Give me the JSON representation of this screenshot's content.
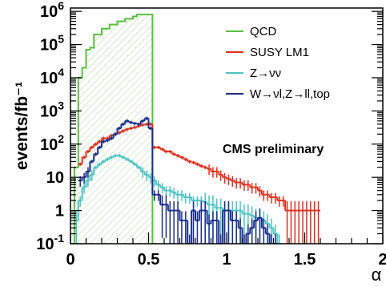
{
  "chart_data": {
    "type": "line",
    "xlabel": "α",
    "ylabel": "events/fb⁻¹",
    "xlim": [
      0,
      2
    ],
    "ylim_log10": [
      -1,
      6.1
    ],
    "y_scale": "log",
    "x_tick_labels": [
      {
        "v": 0,
        "t": "0"
      },
      {
        "v": 0.5,
        "t": "0.5"
      },
      {
        "v": 1,
        "t": "1"
      },
      {
        "v": 1.5,
        "t": "1.5"
      },
      {
        "v": 2,
        "t": "2"
      }
    ],
    "y_tick_labels": [
      {
        "e": -1,
        "b": "10",
        "s": "-1"
      },
      {
        "e": 0,
        "b": "1",
        "s": ""
      },
      {
        "e": 1,
        "b": "10",
        "s": ""
      },
      {
        "e": 2,
        "b": "10",
        "s": "2"
      },
      {
        "e": 3,
        "b": "10",
        "s": "3"
      },
      {
        "e": 4,
        "b": "10",
        "s": "4"
      },
      {
        "e": 5,
        "b": "10",
        "s": "5"
      },
      {
        "e": 6,
        "b": "10",
        "s": "6"
      }
    ],
    "annotation": "CMS preliminary",
    "legend_position": "top-right",
    "series": [
      {
        "name": "QCD",
        "color": "#59c040",
        "style": "filled-hatched",
        "x": [
          0.0,
          0.025,
          0.05,
          0.075,
          0.1,
          0.125,
          0.15,
          0.175,
          0.2,
          0.225,
          0.25,
          0.275,
          0.3,
          0.325,
          0.35,
          0.375,
          0.4,
          0.425,
          0.45,
          0.475,
          0.5,
          0.525
        ],
        "y": [
          0.1,
          20,
          10000,
          20000,
          70000,
          80000,
          200000,
          200000,
          300000,
          300000,
          400000,
          400000,
          500000,
          500000,
          600000,
          600000,
          700000,
          800000,
          800000,
          800000,
          800000,
          0.1
        ]
      },
      {
        "name": "SUSY LM1",
        "color": "#e0301e",
        "style": "errorbar",
        "x": [
          0.05,
          0.075,
          0.1,
          0.125,
          0.15,
          0.175,
          0.2,
          0.225,
          0.25,
          0.275,
          0.3,
          0.325,
          0.35,
          0.375,
          0.4,
          0.425,
          0.45,
          0.475,
          0.5,
          0.525,
          0.55,
          0.575,
          0.6,
          0.625,
          0.65,
          0.675,
          0.7,
          0.725,
          0.75,
          0.775,
          0.8,
          0.825,
          0.85,
          0.875,
          0.9,
          0.925,
          0.95,
          0.975,
          1.0,
          1.025,
          1.05,
          1.075,
          1.1,
          1.125,
          1.15,
          1.175,
          1.2,
          1.225,
          1.25,
          1.275,
          1.3,
          1.325,
          1.35,
          1.375,
          1.4,
          1.425,
          1.45,
          1.475,
          1.5,
          1.525,
          1.55,
          1.575
        ],
        "y": [
          25,
          40,
          60,
          80,
          100,
          120,
          150,
          150,
          180,
          200,
          220,
          250,
          280,
          300,
          320,
          350,
          380,
          400,
          400,
          80,
          80,
          70,
          60,
          60,
          50,
          45,
          40,
          35,
          30,
          28,
          25,
          22,
          20,
          18,
          15,
          15,
          12,
          10,
          9,
          8,
          7,
          7,
          6,
          6,
          5,
          5,
          4,
          3,
          3,
          2.5,
          2.5,
          2,
          2,
          1,
          1,
          1,
          1,
          1,
          1,
          1,
          1,
          1
        ]
      },
      {
        "name": "Z→νν",
        "color": "#4fc3c3",
        "style": "errorbar",
        "x": [
          0.025,
          0.05,
          0.075,
          0.1,
          0.125,
          0.15,
          0.175,
          0.2,
          0.225,
          0.25,
          0.275,
          0.3,
          0.325,
          0.35,
          0.375,
          0.4,
          0.425,
          0.45,
          0.475,
          0.5,
          0.525,
          0.55,
          0.575,
          0.6,
          0.625,
          0.65,
          0.675,
          0.7,
          0.725,
          0.75,
          0.775,
          0.8,
          0.825,
          0.85,
          0.875,
          0.9,
          0.925,
          0.95,
          0.975,
          1.0,
          1.025,
          1.05,
          1.075,
          1.1,
          1.125,
          1.15,
          1.175,
          1.2,
          1.225,
          1.25,
          1.275,
          1.3,
          1.325
        ],
        "y": [
          0.5,
          2,
          5,
          8,
          12,
          20,
          25,
          30,
          35,
          40,
          45,
          45,
          40,
          35,
          30,
          25,
          20,
          15,
          12,
          10,
          8,
          6,
          5,
          4,
          4,
          3.5,
          3,
          3,
          2.5,
          2.5,
          2,
          2,
          2,
          1.8,
          1.5,
          1.5,
          1.2,
          1.2,
          1,
          1,
          1,
          1,
          1,
          0.8,
          0.8,
          0.7,
          0.6,
          0.6,
          0.5,
          0.4,
          0.3,
          0.2,
          0.1
        ]
      },
      {
        "name": "W→νl,Z→ll,top",
        "color": "#1a2e8c",
        "style": "errorbar",
        "x": [
          0.05,
          0.075,
          0.1,
          0.125,
          0.15,
          0.175,
          0.2,
          0.225,
          0.25,
          0.275,
          0.3,
          0.325,
          0.35,
          0.375,
          0.4,
          0.425,
          0.45,
          0.475,
          0.5,
          0.525,
          0.55,
          0.575,
          0.6,
          0.625,
          0.65,
          0.675,
          0.7,
          0.725,
          0.75,
          0.775,
          0.8,
          0.825,
          0.85,
          0.875,
          0.9,
          0.925,
          0.95,
          0.975,
          1.0,
          1.025,
          1.05,
          1.075,
          1.1,
          1.125,
          1.15,
          1.175,
          1.2,
          1.225,
          1.25,
          1.275,
          1.3
        ],
        "y": [
          8,
          10,
          15,
          30,
          50,
          80,
          120,
          130,
          150,
          200,
          300,
          400,
          500,
          450,
          420,
          400,
          500,
          600,
          300,
          3,
          3,
          1.5,
          1.5,
          1,
          1,
          1,
          0.5,
          0.5,
          0.1,
          1,
          0.5,
          1,
          1,
          0.4,
          0.5,
          0.5,
          0.1,
          1,
          1,
          0.5,
          0.5,
          0.3,
          0.1,
          0.2,
          0.3,
          0.5,
          0.6,
          0.3,
          0.2,
          0.1,
          0.1
        ]
      }
    ]
  }
}
